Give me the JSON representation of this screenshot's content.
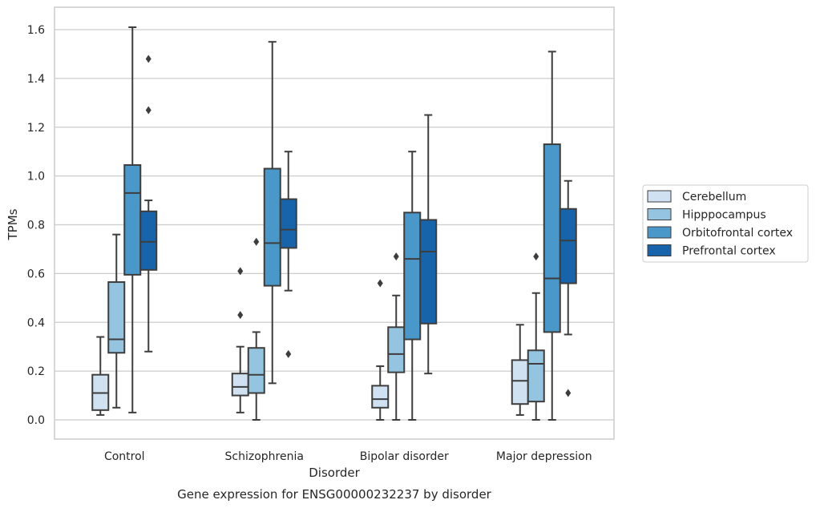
{
  "caption": "Gene expression for ENSG00000232237 by disorder",
  "chart_data": {
    "type": "box",
    "xlabel": "Disorder",
    "ylabel": "TPMs",
    "ylim": [
      -0.08,
      1.69
    ],
    "yticks": [
      0.0,
      0.2,
      0.4,
      0.6,
      0.8,
      1.0,
      1.2,
      1.4,
      1.6
    ],
    "ytick_labels": [
      "0.0",
      "0.2",
      "0.4",
      "0.6",
      "0.8",
      "1.0",
      "1.2",
      "1.4",
      "1.6"
    ],
    "grid": "horizontal",
    "legend_position": "right",
    "categories": [
      "Control",
      "Schizophrenia",
      "Bipolar disorder",
      "Major depression"
    ],
    "series": [
      {
        "name": "Cerebellum",
        "color": "#d0e1f2",
        "boxes": [
          {
            "whisker_low": 0.02,
            "q1": 0.04,
            "median": 0.11,
            "q3": 0.185,
            "whisker_high": 0.34,
            "outliers": []
          },
          {
            "whisker_low": 0.03,
            "q1": 0.1,
            "median": 0.135,
            "q3": 0.19,
            "whisker_high": 0.3,
            "outliers": [
              0.43,
              0.61
            ]
          },
          {
            "whisker_low": 0.0,
            "q1": 0.05,
            "median": 0.085,
            "q3": 0.14,
            "whisker_high": 0.22,
            "outliers": [
              0.56
            ]
          },
          {
            "whisker_low": 0.02,
            "q1": 0.065,
            "median": 0.16,
            "q3": 0.245,
            "whisker_high": 0.39,
            "outliers": []
          }
        ]
      },
      {
        "name": "Hipppocampus",
        "color": "#94c4df",
        "boxes": [
          {
            "whisker_low": 0.05,
            "q1": 0.275,
            "median": 0.33,
            "q3": 0.565,
            "whisker_high": 0.76,
            "outliers": []
          },
          {
            "whisker_low": 0.0,
            "q1": 0.11,
            "median": 0.185,
            "q3": 0.295,
            "whisker_high": 0.36,
            "outliers": [
              0.73
            ]
          },
          {
            "whisker_low": 0.0,
            "q1": 0.195,
            "median": 0.27,
            "q3": 0.38,
            "whisker_high": 0.51,
            "outliers": [
              0.67
            ]
          },
          {
            "whisker_low": 0.0,
            "q1": 0.075,
            "median": 0.23,
            "q3": 0.285,
            "whisker_high": 0.52,
            "outliers": [
              0.67
            ]
          }
        ]
      },
      {
        "name": "Orbitofrontal cortex",
        "color": "#4a98c9",
        "boxes": [
          {
            "whisker_low": 0.03,
            "q1": 0.595,
            "median": 0.93,
            "q3": 1.045,
            "whisker_high": 1.61,
            "outliers": []
          },
          {
            "whisker_low": 0.15,
            "q1": 0.55,
            "median": 0.725,
            "q3": 1.03,
            "whisker_high": 1.55,
            "outliers": []
          },
          {
            "whisker_low": 0.0,
            "q1": 0.33,
            "median": 0.66,
            "q3": 0.85,
            "whisker_high": 1.1,
            "outliers": []
          },
          {
            "whisker_low": 0.0,
            "q1": 0.36,
            "median": 0.58,
            "q3": 1.13,
            "whisker_high": 1.51,
            "outliers": []
          }
        ]
      },
      {
        "name": "Prefrontal cortex",
        "color": "#1764ab",
        "boxes": [
          {
            "whisker_low": 0.28,
            "q1": 0.615,
            "median": 0.73,
            "q3": 0.855,
            "whisker_high": 0.9,
            "outliers": [
              1.27,
              1.48
            ]
          },
          {
            "whisker_low": 0.53,
            "q1": 0.705,
            "median": 0.78,
            "q3": 0.905,
            "whisker_high": 1.1,
            "outliers": [
              0.27
            ]
          },
          {
            "whisker_low": 0.19,
            "q1": 0.395,
            "median": 0.69,
            "q3": 0.82,
            "whisker_high": 1.25,
            "outliers": []
          },
          {
            "whisker_low": 0.35,
            "q1": 0.56,
            "median": 0.735,
            "q3": 0.865,
            "whisker_high": 0.98,
            "outliers": [
              0.11
            ]
          }
        ]
      }
    ]
  }
}
